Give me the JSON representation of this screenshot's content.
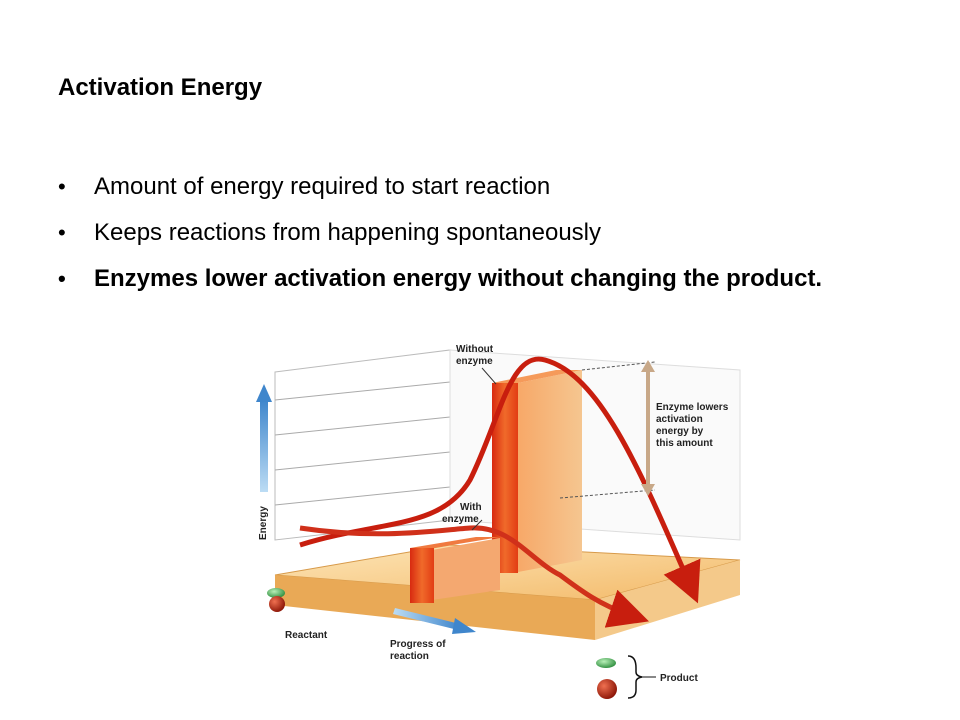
{
  "slide": {
    "title": "Activation Energy",
    "bullets": [
      "Amount of energy required to start reaction",
      "Keeps reactions from happening spontaneously",
      "Enzymes lower activation energy without changing the product."
    ]
  },
  "figure": {
    "labels": {
      "without_enzyme": [
        "Without",
        "enzyme"
      ],
      "with_enzyme": [
        "With",
        "enzyme"
      ],
      "enzyme_lowers": [
        "Enzyme lowers",
        "activation",
        "energy by",
        "this amount"
      ],
      "energy_axis": "Energy",
      "progress_axis": [
        "Progress of",
        "reaction"
      ],
      "reactant": "Reactant",
      "product": "Product"
    },
    "colors": {
      "bar": "#e8401a",
      "curve": "#c81e0e",
      "floor": "#f5c680",
      "axis_arrow": "#4a8fd0",
      "molecule_red": "#b4200a",
      "molecule_green": "#3aa64a"
    }
  }
}
